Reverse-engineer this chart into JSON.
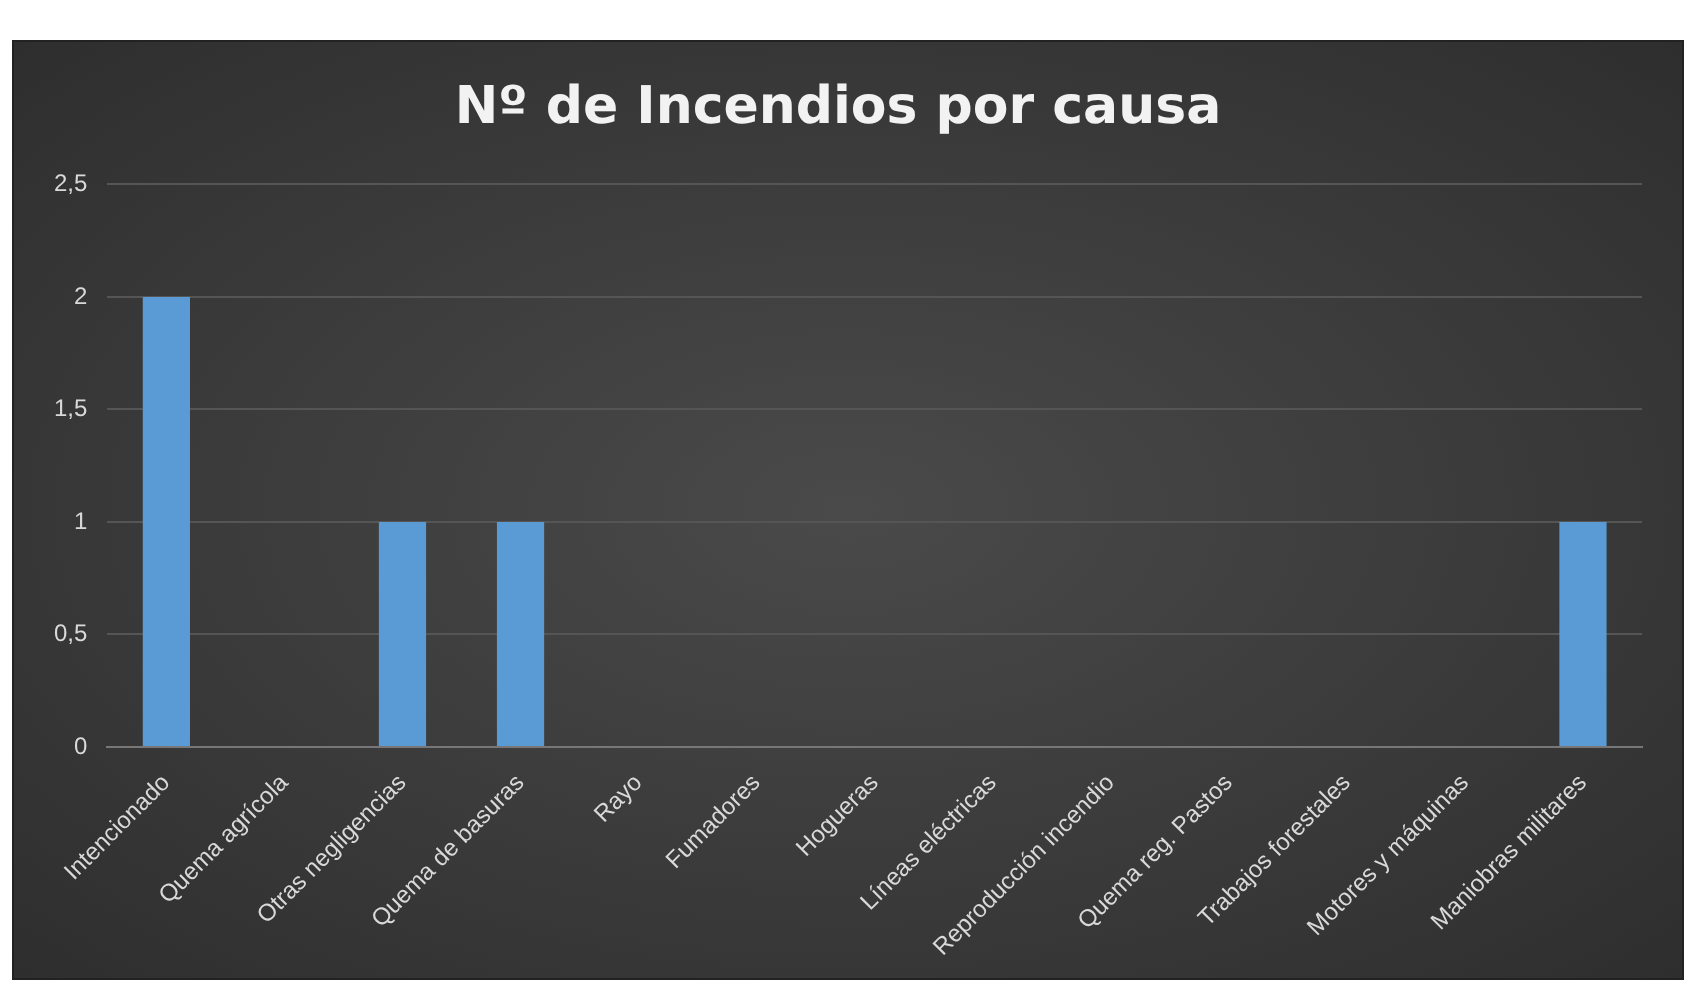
{
  "chart_data": {
    "type": "bar",
    "title": "Nº de Incendios por causa",
    "categories": [
      "Intencionado",
      "Quema agrícola",
      "Otras negligencias",
      "Quema de basuras",
      "Rayo",
      "Fumadores",
      "Hogueras",
      "Líneas eléctricas",
      "Reproducción incendio",
      "Quema reg. Pastos",
      "Trabajos forestales",
      "Motores y máquinas",
      "Maniobras militares"
    ],
    "values": [
      2,
      0,
      1,
      1,
      0,
      0,
      0,
      0,
      0,
      0,
      0,
      0,
      1
    ],
    "color": "#5b9bd5",
    "ylim": [
      0,
      2.5
    ],
    "yticks": [
      0,
      {
        "value": 0.5,
        "label": "0,5"
      },
      1,
      {
        "value": 1.5,
        "label": "1,5"
      },
      2,
      {
        "value": 2.5,
        "label": "2,5"
      }
    ],
    "grid": "y"
  }
}
